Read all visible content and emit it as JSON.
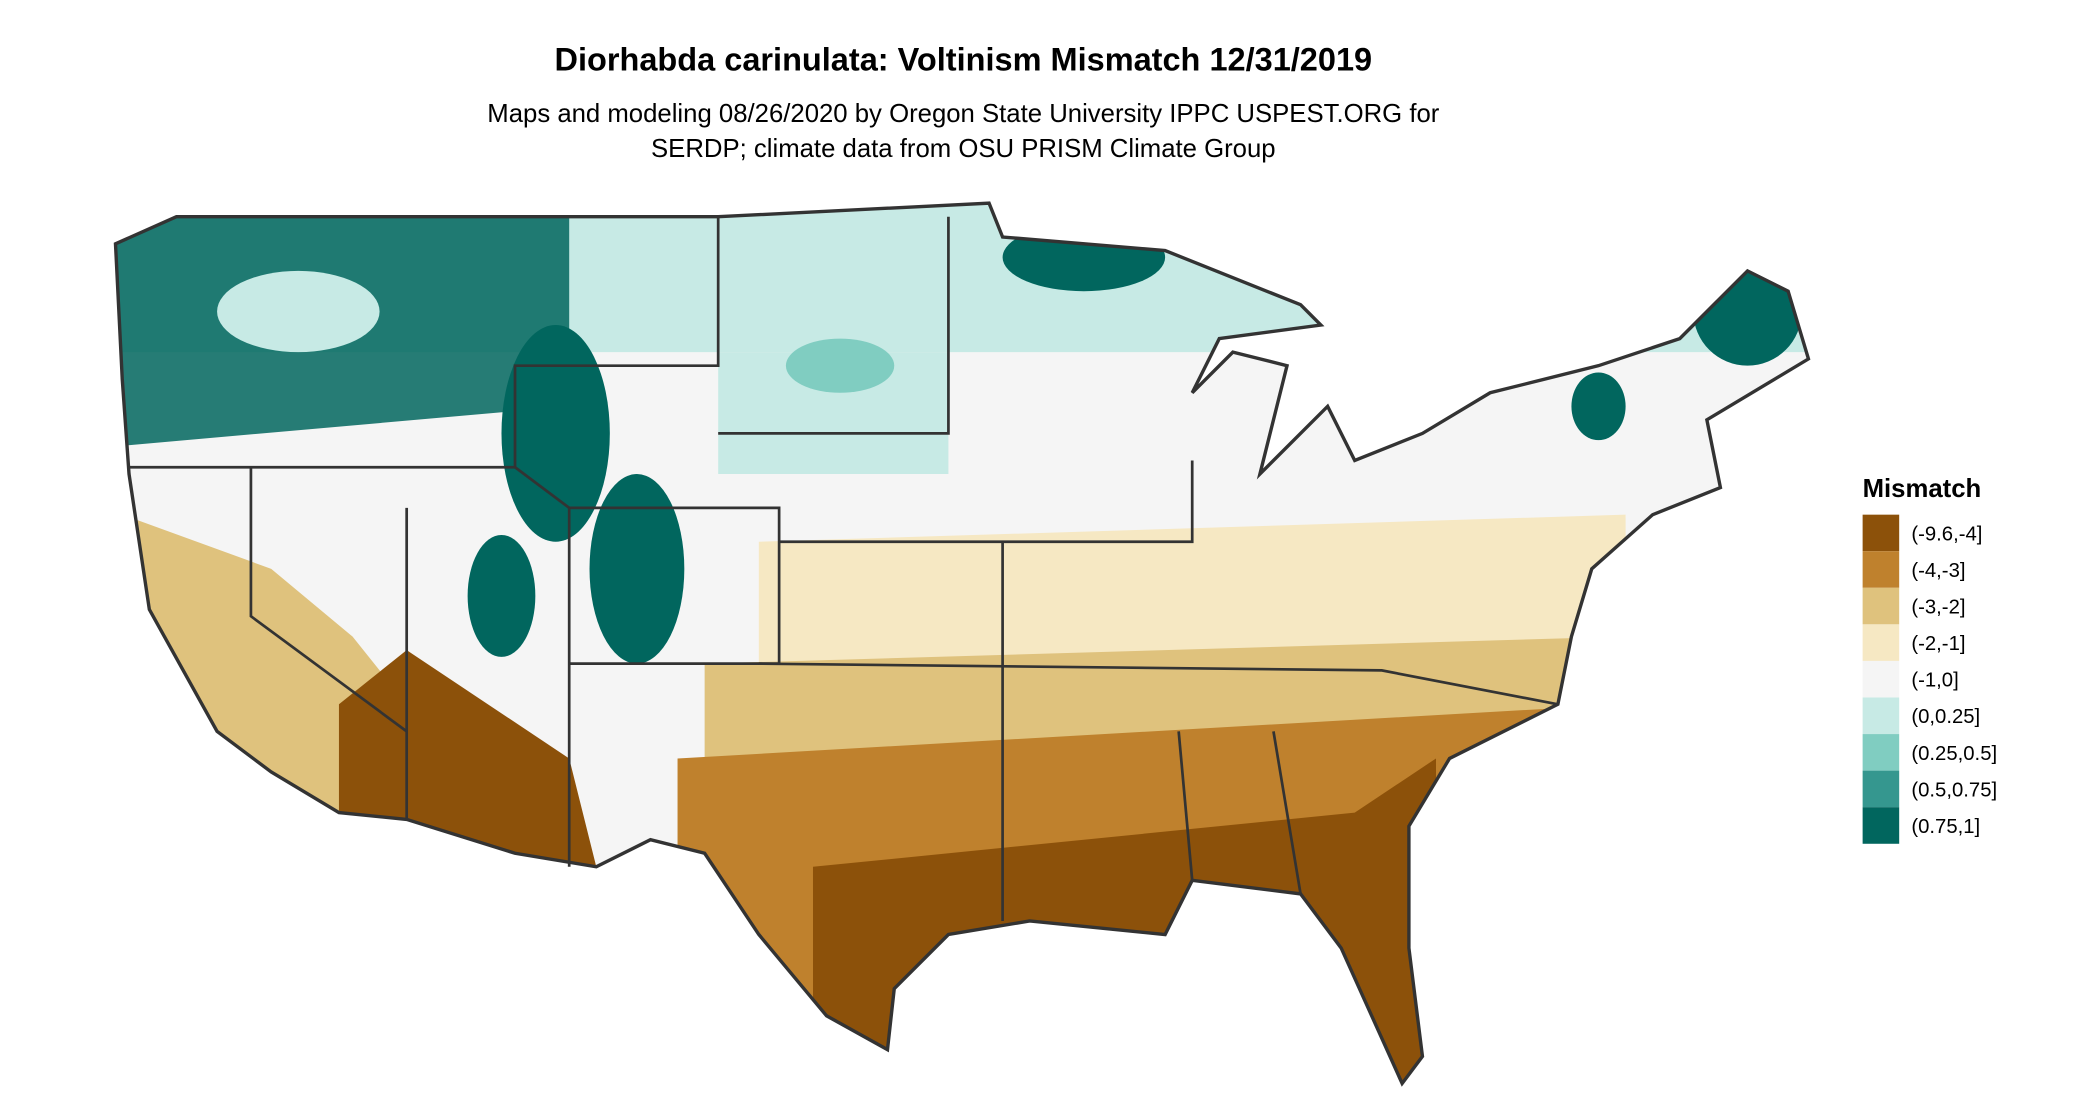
{
  "header": {
    "title": "Diorhabda carinulata: Voltinism Mismatch 12/31/2019",
    "subtitle": [
      "Maps and modeling 08/26/2020 by Oregon State University IPPC USPEST.ORG for",
      "SERDP; climate data from OSU PRISM Climate Group"
    ]
  },
  "legend": {
    "title": "Mismatch",
    "items": [
      {
        "label": "(-9.6,-4]",
        "color": "#8c510a"
      },
      {
        "label": "(-4,-3]",
        "color": "#bf812d"
      },
      {
        "label": "(-3,-2]",
        "color": "#dfc27d"
      },
      {
        "label": "(-2,-1]",
        "color": "#f6e8c3"
      },
      {
        "label": "(-1,0]",
        "color": "#f5f5f5"
      },
      {
        "label": "(0,0.25]",
        "color": "#c7eae5"
      },
      {
        "label": "(0.25,0.5]",
        "color": "#80cdc1"
      },
      {
        "label": "(0.5,0.75]",
        "color": "#35978f"
      },
      {
        "label": "(0.75,1]",
        "color": "#01665e"
      }
    ]
  }
}
